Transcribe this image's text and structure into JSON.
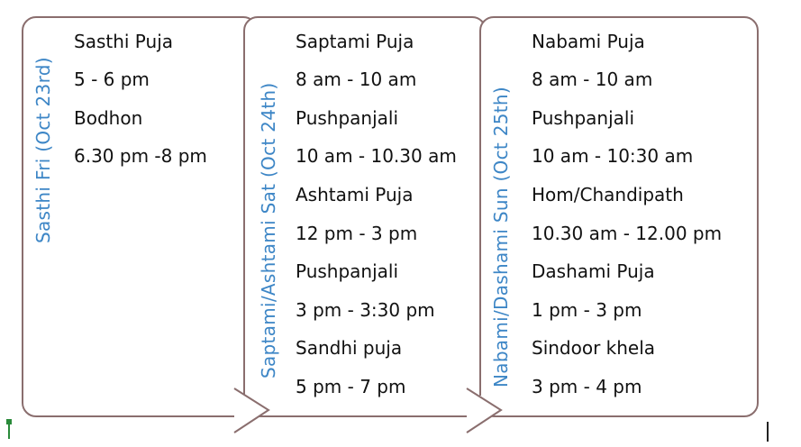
{
  "panels": [
    {
      "day_label": "Sasthi Fri (Oct 23rd)",
      "lines": [
        "Sasthi Puja",
        "5 - 6 pm",
        "Bodhon",
        "6.30 pm -8 pm"
      ]
    },
    {
      "day_label": "Saptami/Ashtami Sat  (Oct 24th)",
      "lines": [
        "Saptami Puja",
        "8 am - 10 am",
        "Pushpanjali",
        "10 am - 10.30 am",
        "Ashtami Puja",
        "12 pm - 3 pm",
        "Pushpanjali",
        "3 pm - 3:30 pm",
        "Sandhi puja",
        "5 pm - 7 pm"
      ]
    },
    {
      "day_label": "Nabami/Dashami Sun  (Oct 25th)",
      "lines": [
        "Nabami Puja",
        "8 am - 10 am",
        "Pushpanjali",
        "10 am - 10:30 am",
        "Hom/Chandipath",
        "10.30 am - 12.00 pm",
        "Dashami Puja",
        "1 pm - 3 pm",
        "Sindoor khela",
        "3 pm - 4 pm"
      ]
    }
  ],
  "colors": {
    "label": "#3d86c6",
    "border": "#8a6e6e",
    "text": "#111111"
  }
}
